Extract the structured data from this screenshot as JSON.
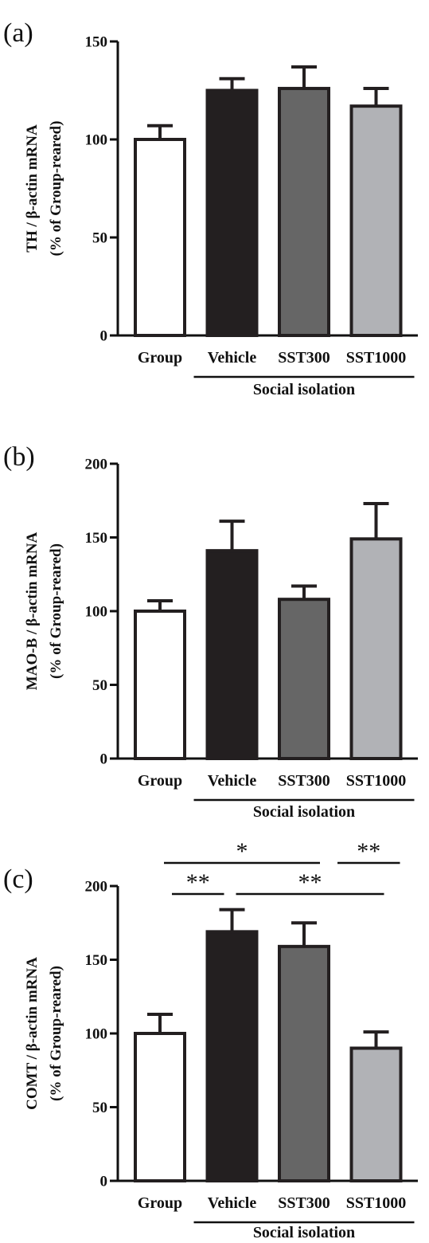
{
  "chart_data": [
    {
      "panel": "(a)",
      "type": "bar",
      "ylabel_lines": [
        "TH / β-actin mRNA",
        "(% of Group-reared)"
      ],
      "categories": [
        "Group",
        "Vehicle",
        "SST300",
        "SST1000"
      ],
      "values": [
        100,
        125,
        126,
        117
      ],
      "errors": [
        7,
        6,
        11,
        9
      ],
      "colors": [
        "#ffffff",
        "#231f20",
        "#666666",
        "#b1b2b6"
      ],
      "ylim": [
        0,
        150
      ],
      "yticks": [
        0,
        50,
        100,
        150
      ],
      "bracket_label": "Social isolation",
      "significance": []
    },
    {
      "panel": "(b)",
      "type": "bar",
      "ylabel_lines": [
        "MAO-B / β-actin mRNA",
        "(% of Group-reared)"
      ],
      "categories": [
        "Group",
        "Vehicle",
        "SST300",
        "SST1000"
      ],
      "values": [
        100,
        141,
        108,
        149
      ],
      "errors": [
        7,
        20,
        9,
        24
      ],
      "colors": [
        "#ffffff",
        "#231f20",
        "#666666",
        "#b1b2b6"
      ],
      "ylim": [
        0,
        200
      ],
      "yticks": [
        0,
        50,
        100,
        150,
        200
      ],
      "bracket_label": "Social isolation",
      "significance": []
    },
    {
      "panel": "(c)",
      "type": "bar",
      "ylabel_lines": [
        "COMT / β-actin mRNA",
        "(% of Group-reared)"
      ],
      "categories": [
        "Group",
        "Vehicle",
        "SST300",
        "SST1000"
      ],
      "values": [
        100,
        169,
        159,
        90
      ],
      "errors": [
        13,
        15,
        16,
        11
      ],
      "colors": [
        "#ffffff",
        "#231f20",
        "#666666",
        "#b1b2b6"
      ],
      "ylim": [
        0,
        200
      ],
      "yticks": [
        0,
        50,
        100,
        150,
        200
      ],
      "bracket_label": "Social isolation",
      "significance": [
        {
          "from": 0,
          "to": 2,
          "label": "*"
        },
        {
          "from": 2,
          "to": 3,
          "label": "**"
        },
        {
          "from": 0,
          "to": 1,
          "label": "**"
        },
        {
          "from": 1,
          "to": 3,
          "label": "**"
        }
      ]
    }
  ]
}
